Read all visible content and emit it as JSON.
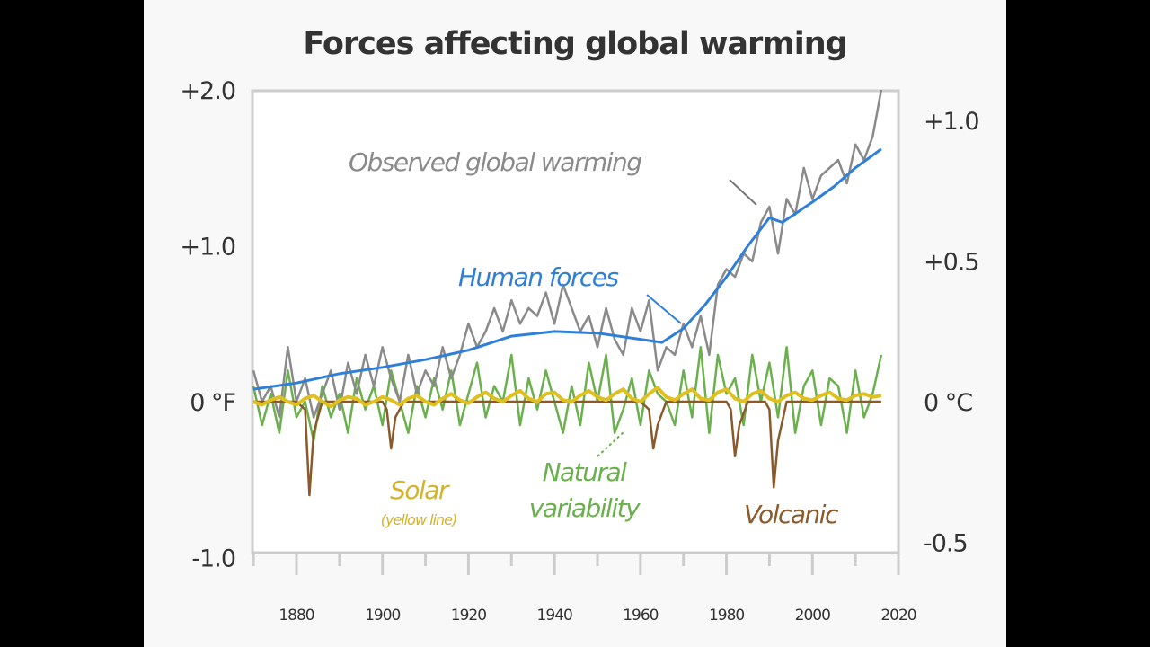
{
  "chart_data": {
    "type": "line",
    "title": "Forces affecting global warming",
    "xlim": [
      1870,
      2020
    ],
    "ylim_left": [
      -1.0,
      2.0
    ],
    "ylim_right": [
      -0.5,
      1.0
    ],
    "x_ticks": [
      "1880",
      "1900",
      "1920",
      "1940",
      "1960",
      "1980",
      "2000",
      "2020"
    ],
    "y_ticks_left": [
      {
        "v": 2.0,
        "label": "+2.0"
      },
      {
        "v": 1.0,
        "label": "+1.0"
      },
      {
        "v": 0,
        "label": "0 °F"
      },
      {
        "v": -1.0,
        "label": "-1.0"
      }
    ],
    "y_ticks_right": [
      {
        "v": 1.0,
        "label": "+1.0"
      },
      {
        "v": 0.5,
        "label": "+0.5"
      },
      {
        "v": 0,
        "label": "0 °C"
      },
      {
        "v": -0.5,
        "label": "-0.5"
      }
    ],
    "series": [
      {
        "name": "Natural variability",
        "color": "#6ab04c",
        "x_start": 1870,
        "x_step": 2,
        "values": [
          0.1,
          -0.15,
          0.05,
          -0.2,
          0.2,
          -0.1,
          0.0,
          -0.25,
          0.1,
          -0.1,
          0.05,
          -0.2,
          0.15,
          -0.05,
          0.1,
          -0.15,
          0.2,
          0.0,
          -0.2,
          0.1,
          -0.1,
          0.15,
          -0.05,
          0.2,
          -0.15,
          0.05,
          0.25,
          -0.1,
          0.1,
          0.0,
          0.3,
          -0.15,
          0.15,
          -0.05,
          0.2,
          0.0,
          -0.2,
          0.1,
          -0.15,
          0.25,
          0.0,
          0.3,
          -0.2,
          -0.05,
          0.15,
          -0.15,
          0.2,
          0.05,
          0.0,
          -0.15,
          0.2,
          -0.1,
          0.35,
          -0.2,
          0.3,
          0.05,
          0.15,
          -0.15,
          0.3,
          0.0,
          0.25,
          -0.1,
          0.35,
          -0.2,
          0.1,
          0.2,
          -0.15,
          0.15,
          0.1,
          -0.2,
          0.2,
          -0.1,
          0.05,
          0.3
        ]
      },
      {
        "name": "Observed global warming",
        "color": "#8a8a8a",
        "x_start": 1870,
        "x_step": 2,
        "values": [
          0.2,
          0.0,
          0.1,
          -0.1,
          0.35,
          0.0,
          0.15,
          -0.1,
          0.05,
          0.2,
          -0.05,
          0.25,
          0.05,
          0.3,
          0.1,
          0.35,
          0.15,
          0.0,
          0.3,
          0.05,
          0.2,
          0.1,
          0.35,
          0.15,
          0.3,
          0.5,
          0.35,
          0.45,
          0.6,
          0.45,
          0.65,
          0.5,
          0.6,
          0.55,
          0.7,
          0.5,
          0.75,
          0.6,
          0.45,
          0.55,
          0.35,
          0.6,
          0.4,
          0.3,
          0.6,
          0.45,
          0.65,
          0.2,
          0.35,
          0.3,
          0.5,
          0.35,
          0.55,
          0.3,
          0.75,
          0.85,
          0.8,
          0.95,
          0.9,
          1.15,
          1.25,
          0.95,
          1.3,
          1.2,
          1.5,
          1.3,
          1.45,
          1.5,
          1.55,
          1.4,
          1.65,
          1.55,
          1.7,
          2.0
        ]
      },
      {
        "name": "Human forces",
        "color": "#2f7fd8",
        "x": [
          1870,
          1880,
          1890,
          1900,
          1910,
          1920,
          1930,
          1940,
          1950,
          1960,
          1965,
          1970,
          1975,
          1980,
          1985,
          1990,
          1993,
          2000,
          2005,
          2010,
          2016
        ],
        "values": [
          0.08,
          0.12,
          0.18,
          0.22,
          0.27,
          0.33,
          0.42,
          0.45,
          0.44,
          0.4,
          0.38,
          0.47,
          0.62,
          0.8,
          1.0,
          1.18,
          1.15,
          1.28,
          1.38,
          1.5,
          1.62
        ]
      },
      {
        "name": "Volcanic",
        "color": "#8b5a2b",
        "x": [
          1870,
          1880,
          1882,
          1883,
          1884,
          1886,
          1900,
          1901,
          1902,
          1903,
          1905,
          1960,
          1962,
          1963,
          1964,
          1966,
          1980,
          1981,
          1982,
          1983,
          1985,
          1989,
          1990,
          1991,
          1992,
          1994,
          2016
        ],
        "values": [
          0.0,
          0.0,
          -0.05,
          -0.6,
          -0.2,
          0.0,
          0.0,
          -0.05,
          -0.3,
          -0.1,
          0.0,
          0.0,
          -0.05,
          -0.3,
          -0.15,
          0.0,
          0.0,
          -0.05,
          -0.35,
          -0.15,
          0.0,
          0.0,
          -0.05,
          -0.55,
          -0.25,
          0.0,
          0.0
        ]
      },
      {
        "name": "Solar",
        "color": "#e0c020",
        "x_start": 1870,
        "x_step": 2,
        "values": [
          0.0,
          -0.02,
          0.01,
          0.03,
          0.0,
          -0.02,
          0.02,
          0.04,
          0.0,
          -0.03,
          0.01,
          0.03,
          0.02,
          -0.02,
          0.0,
          0.03,
          0.01,
          -0.02,
          0.02,
          0.04,
          0.0,
          -0.02,
          0.02,
          0.05,
          0.01,
          -0.01,
          0.03,
          0.06,
          0.02,
          0.0,
          0.04,
          0.07,
          0.02,
          0.0,
          0.05,
          0.06,
          0.01,
          0.0,
          0.04,
          0.07,
          0.03,
          0.01,
          0.05,
          0.08,
          0.02,
          0.0,
          0.05,
          0.09,
          0.03,
          0.01,
          0.05,
          0.08,
          0.02,
          0.01,
          0.06,
          0.08,
          0.02,
          0.0,
          0.05,
          0.07,
          0.02,
          0.0,
          0.04,
          0.06,
          0.02,
          0.01,
          0.04,
          0.06,
          0.02,
          0.01,
          0.04,
          0.05,
          0.03,
          0.04
        ]
      }
    ],
    "annotations": [
      {
        "text": "Observed global warming",
        "color": "#8a8a8a"
      },
      {
        "text": "Human forces",
        "color": "#2f7fd8"
      },
      {
        "text": "Solar",
        "color": "#d4b22a"
      },
      {
        "text": "(yellow line)",
        "color": "#d4b22a"
      },
      {
        "text": "Natural",
        "color": "#6ab04c"
      },
      {
        "text": "variability",
        "color": "#6ab04c"
      },
      {
        "text": "Volcanic",
        "color": "#8b5a2b"
      }
    ]
  }
}
